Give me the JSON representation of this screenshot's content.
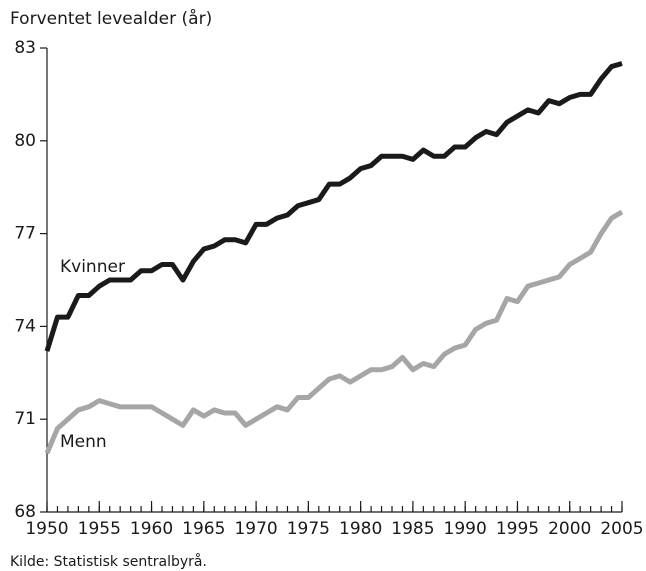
{
  "chart_data": {
    "type": "line",
    "title": "Forventet levealder (år)",
    "source": "Kilde: Statistisk sentralbyrå.",
    "x": [
      1950,
      1951,
      1952,
      1953,
      1954,
      1955,
      1956,
      1957,
      1958,
      1959,
      1960,
      1961,
      1962,
      1963,
      1964,
      1965,
      1966,
      1967,
      1968,
      1969,
      1970,
      1971,
      1972,
      1973,
      1974,
      1975,
      1976,
      1977,
      1978,
      1979,
      1980,
      1981,
      1982,
      1983,
      1984,
      1985,
      1986,
      1987,
      1988,
      1989,
      1990,
      1991,
      1992,
      1993,
      1994,
      1995,
      1996,
      1997,
      1998,
      1999,
      2000,
      2001,
      2002,
      2003,
      2004,
      2005
    ],
    "series": [
      {
        "name": "Kvinner",
        "color": "#1a1a1a",
        "values": [
          73.2,
          74.3,
          74.3,
          75.0,
          75.0,
          75.3,
          75.5,
          75.5,
          75.5,
          75.8,
          75.8,
          76.0,
          76.0,
          75.5,
          76.1,
          76.5,
          76.6,
          76.8,
          76.8,
          76.7,
          77.3,
          77.3,
          77.5,
          77.6,
          77.9,
          78.0,
          78.1,
          78.6,
          78.6,
          78.8,
          79.1,
          79.2,
          79.5,
          79.5,
          79.5,
          79.4,
          79.7,
          79.5,
          79.5,
          79.8,
          79.8,
          80.1,
          80.3,
          80.2,
          80.6,
          80.8,
          81.0,
          80.9,
          81.3,
          81.2,
          81.4,
          81.5,
          81.5,
          82.0,
          82.4,
          82.5
        ]
      },
      {
        "name": "Menn",
        "color": "#a6a6a6",
        "values": [
          69.9,
          70.7,
          71.0,
          71.3,
          71.4,
          71.6,
          71.5,
          71.4,
          71.4,
          71.4,
          71.4,
          71.2,
          71.0,
          70.8,
          71.3,
          71.1,
          71.3,
          71.2,
          71.2,
          70.8,
          71.0,
          71.2,
          71.4,
          71.3,
          71.7,
          71.7,
          72.0,
          72.3,
          72.4,
          72.2,
          72.4,
          72.6,
          72.6,
          72.7,
          73.0,
          72.6,
          72.8,
          72.7,
          73.1,
          73.3,
          73.4,
          73.9,
          74.1,
          74.2,
          74.9,
          74.8,
          75.3,
          75.4,
          75.5,
          75.6,
          76.0,
          76.2,
          76.4,
          77.0,
          77.5,
          77.7
        ]
      }
    ],
    "xlim": [
      1950,
      2005
    ],
    "xticks": [
      1950,
      1955,
      1960,
      1965,
      1970,
      1975,
      1980,
      1985,
      1990,
      1995,
      2000,
      2005
    ],
    "ylim": [
      68,
      83
    ],
    "yticks": [
      68,
      71,
      74,
      77,
      80,
      83
    ],
    "grid": false
  }
}
